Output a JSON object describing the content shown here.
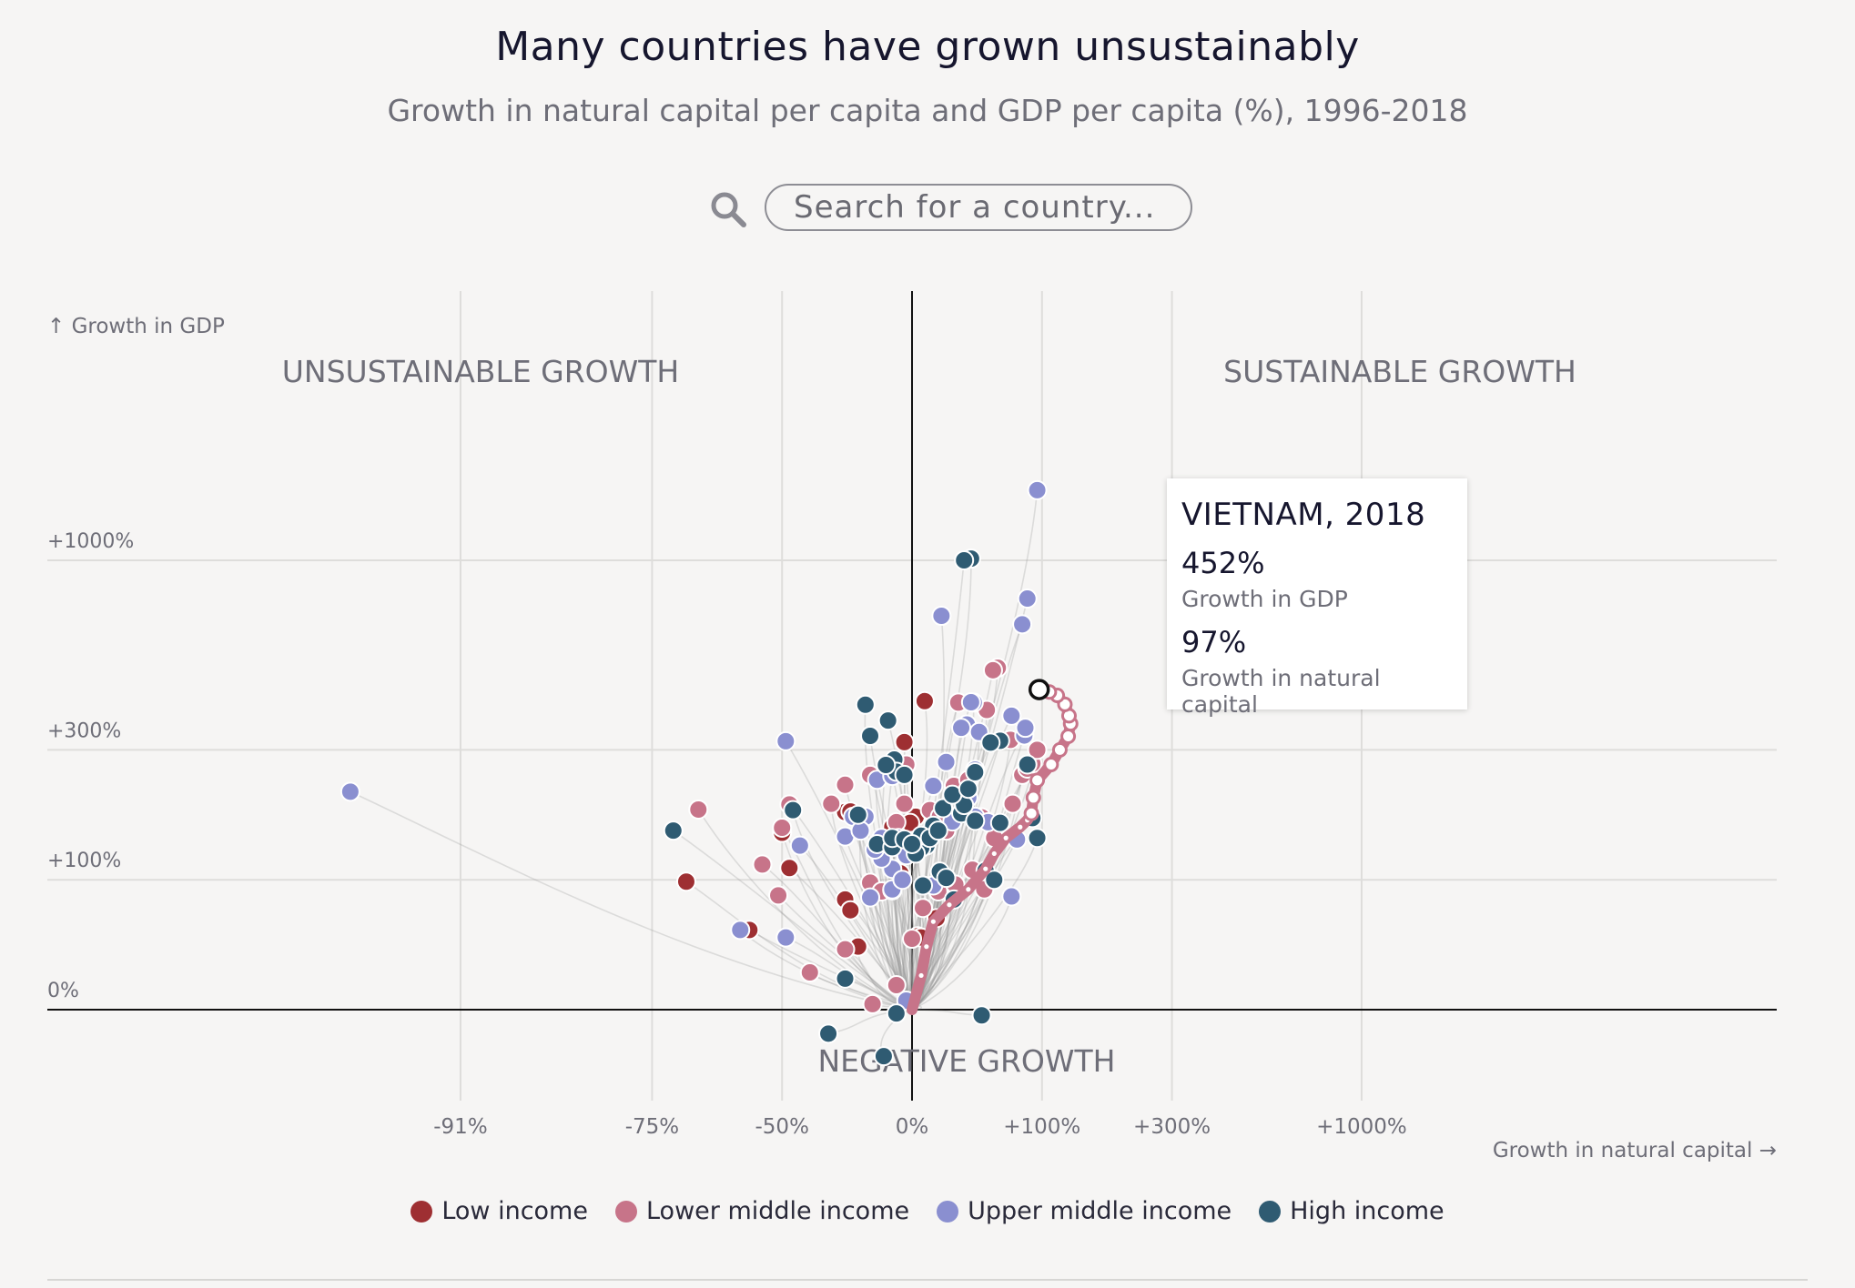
{
  "title": "Many countries have grown unsustainably",
  "subtitle": "Growth in natural capital per capita and GDP per capita (%), 1996-2018",
  "search": {
    "placeholder": "Search for a country..."
  },
  "tooltip": {
    "country": "VIETNAM, 2018",
    "gdp_value": "452%",
    "gdp_label": "Growth in GDP",
    "nc_value": "97%",
    "nc_label": "Growth in natural capital"
  },
  "legend": [
    {
      "label": "Low income",
      "color": "#9e2f32"
    },
    {
      "label": "Lower middle income",
      "color": "#c77489"
    },
    {
      "label": "Upper middle income",
      "color": "#8a8fd0"
    },
    {
      "label": "High income",
      "color": "#2f5b72"
    }
  ],
  "chart_data": {
    "type": "scatter",
    "title": "Many countries have grown unsustainably",
    "xlabel": "Growth in natural capital →",
    "ylabel": "↑ Growth in GDP",
    "x_ticks": [
      "-91%",
      "-75%",
      "-50%",
      "0%",
      "+100%",
      "+300%",
      "+1000%"
    ],
    "y_ticks": [
      "+1000%",
      "+300%",
      "+100%",
      "0%"
    ],
    "quadrant_labels": {
      "top_left": "UNSUSTAINABLE GROWTH",
      "top_right": "SUSTAINABLE GROWTH",
      "bottom": "NEGATIVE GROWTH"
    },
    "grid": true,
    "legend_position": "bottom-center",
    "scale_note": "both axes use a log(1 + growth) scale",
    "series": [
      {
        "name": "Low income",
        "color": "#9e2f32",
        "points": [
          [
            7,
            419
          ],
          [
            -4,
            317
          ],
          [
            -6,
            107
          ],
          [
            3,
            48
          ],
          [
            -58,
            53
          ],
          [
            -50,
            157
          ],
          [
            -30,
            187
          ],
          [
            -3,
            160
          ],
          [
            2,
            180
          ],
          [
            -48,
            113
          ],
          [
            -70,
            98
          ],
          [
            -25,
            40
          ],
          [
            -28,
            188
          ],
          [
            -1,
            171
          ],
          [
            5,
            47
          ],
          [
            14,
            63
          ],
          [
            -10,
            165
          ],
          [
            5,
            147
          ],
          [
            -30,
            80
          ],
          [
            -28,
            70
          ]
        ]
      },
      {
        "name": "Lower middle income",
        "color": "#c77489",
        "points": [
          [
            58,
            520
          ],
          [
            54,
            512
          ],
          [
            28,
            415
          ],
          [
            49,
            395
          ],
          [
            -3,
            270
          ],
          [
            -4,
            200
          ],
          [
            -20,
            250
          ],
          [
            -30,
            232
          ],
          [
            -35,
            200
          ],
          [
            -48,
            199
          ],
          [
            -50,
            164
          ],
          [
            -68,
            191
          ],
          [
            -55,
            117
          ],
          [
            -51,
            84
          ],
          [
            -42,
            22
          ],
          [
            -30,
            38
          ],
          [
            -20,
            97
          ],
          [
            -15,
            88
          ],
          [
            -10,
            89
          ],
          [
            -8,
            172
          ],
          [
            10,
            190
          ],
          [
            16,
            180
          ],
          [
            20,
            160
          ],
          [
            32,
            193
          ],
          [
            40,
            176
          ],
          [
            45,
            179
          ],
          [
            55,
            150
          ],
          [
            69,
            322
          ],
          [
            71,
            200
          ],
          [
            -19,
            3
          ],
          [
            -8,
            14
          ],
          [
            0,
            46
          ],
          [
            6,
            72
          ],
          [
            15,
            88
          ],
          [
            26,
            95
          ],
          [
            38,
            111
          ],
          [
            47,
            90
          ],
          [
            25,
            230
          ],
          [
            35,
            241
          ],
          [
            80,
            250
          ],
          [
            85,
            262
          ],
          [
            90,
            272
          ],
          [
            95,
            300
          ]
        ]
      },
      {
        "name": "Upper middle income",
        "color": "#8a8fd0",
        "points": [
          [
            95,
            1500
          ],
          [
            85,
            797
          ],
          [
            80,
            682
          ],
          [
            17,
            718
          ],
          [
            82,
            332
          ],
          [
            70,
            380
          ],
          [
            39,
            415
          ],
          [
            34,
            358
          ],
          [
            37,
            416
          ],
          [
            -49,
            319
          ],
          [
            -95,
            220
          ],
          [
            -60,
            53
          ],
          [
            -49,
            47
          ],
          [
            -27,
            180
          ],
          [
            -17,
            241
          ],
          [
            -10,
            248
          ],
          [
            -22,
            180
          ],
          [
            -15,
            150
          ],
          [
            -45,
            140
          ],
          [
            -30,
            152
          ],
          [
            -24,
            160
          ],
          [
            -10,
            112
          ],
          [
            -10,
            90
          ],
          [
            -20,
            82
          ],
          [
            -3,
            128
          ],
          [
            5,
            150
          ],
          [
            12,
            230
          ],
          [
            20,
            275
          ],
          [
            35,
            210
          ],
          [
            40,
            180
          ],
          [
            50,
            172
          ],
          [
            75,
            148
          ],
          [
            83,
            350
          ],
          [
            70,
            83
          ],
          [
            -3,
            5
          ],
          [
            -7,
            150
          ],
          [
            -15,
            124
          ],
          [
            -18,
            135
          ],
          [
            -5,
            100
          ],
          [
            12,
            94
          ],
          [
            24,
            173
          ],
          [
            40,
            260
          ],
          [
            43,
            340
          ],
          [
            30,
            350
          ]
        ]
      },
      {
        "name": "High income",
        "color": "#2f5b72",
        "points": [
          [
            37,
            1010
          ],
          [
            32,
            1000
          ],
          [
            -22,
            409
          ],
          [
            -12,
            368
          ],
          [
            -20,
            331
          ],
          [
            -9,
            280
          ],
          [
            -8,
            256
          ],
          [
            -4,
            250
          ],
          [
            -47,
            190
          ],
          [
            -72,
            160
          ],
          [
            -25,
            183
          ],
          [
            -13,
            269
          ],
          [
            18,
            193
          ],
          [
            30,
            185
          ],
          [
            40,
            174
          ],
          [
            60,
            171
          ],
          [
            32,
            198
          ],
          [
            24,
            215
          ],
          [
            12,
            167
          ],
          [
            8,
            140
          ],
          [
            5,
            137
          ],
          [
            2,
            130
          ],
          [
            16,
            109
          ],
          [
            20,
            102
          ],
          [
            6,
            94
          ],
          [
            25,
            80
          ],
          [
            -14,
            -22
          ],
          [
            -17,
            142
          ],
          [
            -10,
            138
          ],
          [
            5,
            153
          ],
          [
            48,
            110
          ],
          [
            -10,
            150
          ],
          [
            -4,
            148
          ],
          [
            0,
            142
          ],
          [
            85,
            270
          ],
          [
            90,
            178
          ],
          [
            95,
            150
          ],
          [
            55,
            100
          ],
          [
            35,
            225
          ],
          [
            40,
            255
          ],
          [
            60,
            320
          ],
          [
            52,
            316
          ],
          [
            -30,
            18
          ],
          [
            -8,
            -2
          ],
          [
            45,
            -3
          ],
          [
            -36,
            -12
          ],
          [
            10,
            150
          ],
          [
            15,
            160
          ]
        ]
      },
      {
        "name": "Vietnam",
        "color": "#c77489",
        "highlight": true,
        "points": [
          [
            0,
            0
          ],
          [
            5,
            20
          ],
          [
            8,
            40
          ],
          [
            12,
            60
          ],
          [
            22,
            75
          ],
          [
            35,
            90
          ],
          [
            48,
            112
          ],
          [
            55,
            130
          ],
          [
            65,
            150
          ],
          [
            78,
            165
          ],
          [
            85,
            175
          ],
          [
            89,
            185
          ],
          [
            91,
            210
          ],
          [
            95,
            240
          ],
          [
            110,
            270
          ],
          [
            120,
            300
          ],
          [
            130,
            330
          ],
          [
            133,
            360
          ],
          [
            131,
            380
          ],
          [
            126,
            410
          ],
          [
            117,
            435
          ],
          [
            108,
            445
          ],
          [
            97,
            452
          ]
        ]
      }
    ]
  }
}
